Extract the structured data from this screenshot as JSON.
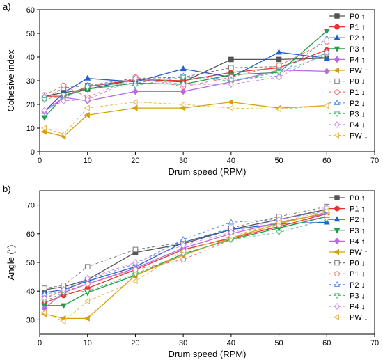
{
  "chart_data": [
    {
      "type": "line",
      "panel_label": "a)",
      "xlabel": "Drum speed (RPM)",
      "ylabel": "Cohesive index",
      "xlim": [
        0,
        70
      ],
      "ylim": [
        0,
        60
      ],
      "xticks": [
        0,
        10,
        20,
        30,
        40,
        50,
        60,
        70
      ],
      "yticks": [
        0,
        10,
        20,
        30,
        40,
        50,
        60
      ],
      "grid": false,
      "legend_position": "top-right",
      "x": [
        1,
        5,
        10,
        20,
        30,
        40,
        50,
        60
      ],
      "series": [
        {
          "name": "P0 ↑",
          "color": "#555555",
          "marker": "square",
          "filled": true,
          "dashed": false,
          "values": [
            23.5,
            25,
            26.5,
            30.5,
            29.5,
            39,
            39,
            39.5
          ]
        },
        {
          "name": "P1 ↑",
          "color": "#e8332f",
          "marker": "circle",
          "filled": true,
          "dashed": false,
          "values": [
            23.5,
            23.5,
            27.5,
            30.5,
            30,
            33.5,
            35.5,
            43
          ]
        },
        {
          "name": "P2 ↑",
          "color": "#1f5fd1",
          "marker": "triangle-up",
          "filled": true,
          "dashed": false,
          "values": [
            17,
            25,
            31,
            29.5,
            35,
            31.5,
            42,
            39.5
          ]
        },
        {
          "name": "P3 ↑",
          "color": "#1e9e46",
          "marker": "triangle-down",
          "filled": true,
          "dashed": false,
          "values": [
            14.5,
            23.5,
            26.5,
            29,
            28.5,
            32.5,
            33.5,
            51
          ]
        },
        {
          "name": "P4 ↑",
          "color": "#b86be0",
          "marker": "diamond",
          "filled": true,
          "dashed": false,
          "values": [
            17,
            23,
            21.5,
            25.5,
            25.5,
            29.5,
            34.5,
            34
          ]
        },
        {
          "name": "PW ↑",
          "color": "#d4a10b",
          "marker": "triangle-left",
          "filled": true,
          "dashed": false,
          "values": [
            8.5,
            6.5,
            15.5,
            18.5,
            18.5,
            21,
            18.5,
            19.5
          ]
        },
        {
          "name": "P0 ↓",
          "color": "#777777",
          "marker": "square",
          "filled": false,
          "dashed": true,
          "values": [
            22.5,
            27,
            28,
            31,
            31.5,
            35.5,
            36,
            41.5
          ]
        },
        {
          "name": "P1 ↓",
          "color": "#f07070",
          "marker": "circle",
          "filled": false,
          "dashed": true,
          "values": [
            24,
            28,
            23,
            31.5,
            27.5,
            31.5,
            36.5,
            46.5
          ]
        },
        {
          "name": "P2 ↓",
          "color": "#5a8ee8",
          "marker": "triangle-up",
          "filled": false,
          "dashed": true,
          "values": [
            23.5,
            22.5,
            28,
            29,
            32,
            30.5,
            32,
            48
          ]
        },
        {
          "name": "P3 ↓",
          "color": "#5cbf7a",
          "marker": "triangle-down",
          "filled": false,
          "dashed": true,
          "values": [
            22,
            24,
            27,
            28,
            31.5,
            30,
            33.5,
            41
          ]
        },
        {
          "name": "P4 ↓",
          "color": "#c98fe8",
          "marker": "diamond",
          "filled": false,
          "dashed": true,
          "values": [
            17.5,
            21.5,
            22,
            31,
            28.5,
            28.5,
            31.5,
            42
          ]
        },
        {
          "name": "PW ↓",
          "color": "#e6b84a",
          "marker": "triangle-left",
          "filled": false,
          "dashed": true,
          "values": [
            10,
            7.5,
            18.5,
            21,
            20,
            18.5,
            18,
            19.5
          ]
        }
      ]
    },
    {
      "type": "line",
      "panel_label": "b)",
      "xlabel": "Drum speed (RPM)",
      "ylabel": "Angle (°)",
      "xlim": [
        0,
        70
      ],
      "ylim": [
        25,
        75
      ],
      "xticks": [
        0,
        10,
        20,
        30,
        40,
        50,
        60,
        70
      ],
      "yticks": [
        30,
        40,
        50,
        60,
        70
      ],
      "grid": false,
      "legend_position": "bottom-right",
      "x": [
        1,
        5,
        10,
        20,
        30,
        40,
        50,
        60
      ],
      "series": [
        {
          "name": "P0 ↑",
          "color": "#555555",
          "marker": "square",
          "filled": true,
          "dashed": false,
          "values": [
            40.5,
            41.5,
            44,
            53.5,
            56.5,
            61.5,
            65,
            68.5
          ]
        },
        {
          "name": "P1 ↑",
          "color": "#e8332f",
          "marker": "circle",
          "filled": true,
          "dashed": false,
          "values": [
            36,
            38.5,
            41,
            47.5,
            54.5,
            58.5,
            62.5,
            67
          ]
        },
        {
          "name": "P2 ↑",
          "color": "#1f5fd1",
          "marker": "triangle-up",
          "filled": true,
          "dashed": false,
          "values": [
            39.5,
            40.5,
            43.5,
            48.5,
            57,
            61.5,
            63.5,
            64
          ]
        },
        {
          "name": "P3 ↑",
          "color": "#1e9e46",
          "marker": "triangle-down",
          "filled": true,
          "dashed": false,
          "values": [
            35,
            35,
            39.5,
            45.5,
            53,
            58,
            62,
            66
          ]
        },
        {
          "name": "P4 ↑",
          "color": "#b86be0",
          "marker": "diamond",
          "filled": true,
          "dashed": false,
          "values": [
            34,
            39.5,
            42.5,
            48,
            55,
            60,
            64,
            67
          ]
        },
        {
          "name": "PW ↑",
          "color": "#d4a10b",
          "marker": "triangle-left",
          "filled": true,
          "dashed": false,
          "values": [
            32,
            30.5,
            30.5,
            45.5,
            52.5,
            58.5,
            63.5,
            67.5
          ]
        },
        {
          "name": "P0 ↓",
          "color": "#777777",
          "marker": "square",
          "filled": false,
          "dashed": true,
          "values": [
            41,
            42,
            48.5,
            54.5,
            57,
            62,
            66,
            69.5
          ]
        },
        {
          "name": "P1 ↓",
          "color": "#f07070",
          "marker": "circle",
          "filled": false,
          "dashed": true,
          "values": [
            37.5,
            40,
            42.5,
            47.5,
            51,
            58,
            63,
            66
          ]
        },
        {
          "name": "P2 ↓",
          "color": "#5a8ee8",
          "marker": "triangle-up",
          "filled": false,
          "dashed": true,
          "values": [
            39,
            40,
            44,
            49.5,
            58,
            64,
            65,
            68
          ]
        },
        {
          "name": "P3 ↓",
          "color": "#5cbf7a",
          "marker": "triangle-down",
          "filled": false,
          "dashed": true,
          "values": [
            36.5,
            39.5,
            40,
            46,
            53,
            58,
            60.5,
            65
          ]
        },
        {
          "name": "P4 ↓",
          "color": "#c98fe8",
          "marker": "diamond",
          "filled": false,
          "dashed": true,
          "values": [
            37.5,
            40.5,
            44.5,
            50,
            56,
            60.5,
            65,
            69
          ]
        },
        {
          "name": "PW ↓",
          "color": "#e6b84a",
          "marker": "triangle-left",
          "filled": false,
          "dashed": true,
          "values": [
            32.5,
            29.5,
            36.5,
            43.5,
            54,
            59,
            64,
            68
          ]
        }
      ]
    }
  ]
}
